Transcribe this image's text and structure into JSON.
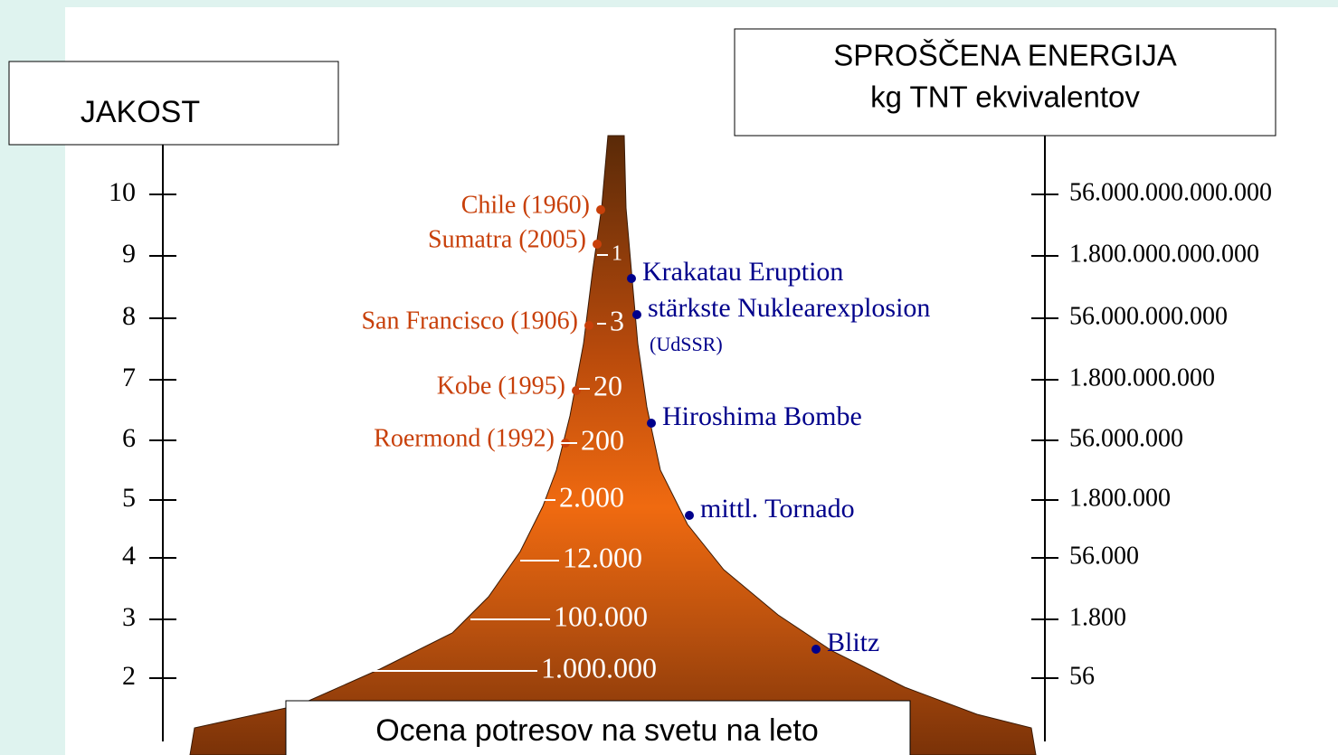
{
  "header": {
    "left_axis_title": "JAKOST",
    "right_axis_title": [
      "SPROŠČENA ENERGIJA",
      "kg TNT ekvivalentov"
    ]
  },
  "left_axis": {
    "labels": [
      "10",
      "9",
      "8",
      "7",
      "6",
      "5",
      "4",
      "3",
      "2"
    ]
  },
  "right_axis": {
    "labels": [
      "56.000.000.000.000",
      "1.800.000.000.000",
      "56.000.000.000",
      "1.800.000.000",
      "56.000.000",
      "1.800.000",
      "56.000",
      "1.800",
      "56"
    ]
  },
  "earthquakes": [
    "Chile (1960)",
    "Sumatra (2005)",
    "San Francisco (1906)",
    "Kobe (1995)",
    "Roermond (1992)"
  ],
  "annual_counts": [
    "1",
    "3",
    "20",
    "200",
    "2.000",
    "12.000",
    "100.000",
    "1.000.000"
  ],
  "comparisons": [
    "Krakatau Eruption",
    "stärkste Nuklearexplosion",
    "(UdSSR)",
    "Hiroshima Bombe",
    "mittl. Tornado",
    "Blitz"
  ],
  "footer": "Ocena potresov na svetu na leto"
}
